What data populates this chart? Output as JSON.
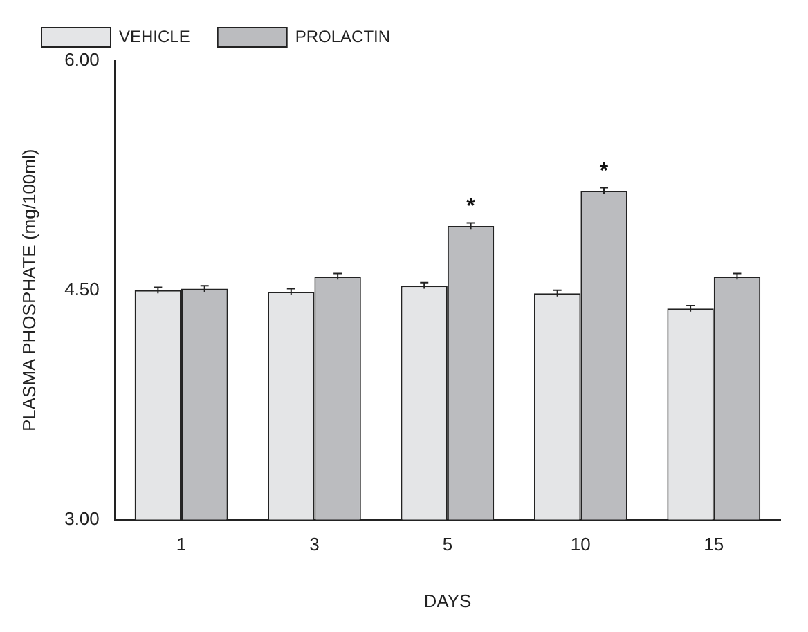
{
  "chart_data": {
    "type": "bar",
    "xlabel": "DAYS",
    "ylabel": "PLASMA PHOSPHATE (mg/100ml)",
    "categories": [
      "1",
      "3",
      "5",
      "10",
      "15"
    ],
    "series": [
      {
        "name": "VEHICLE",
        "color": "#e4e5e7",
        "values": [
          4.5,
          4.49,
          4.53,
          4.48,
          4.38
        ],
        "errors": [
          0.02,
          0.02,
          0.02,
          0.02,
          0.02
        ]
      },
      {
        "name": "PROLACTIN",
        "color": "#bbbcbf",
        "values": [
          4.51,
          4.59,
          4.92,
          5.15,
          4.59
        ],
        "errors": [
          0.02,
          0.02,
          0.02,
          0.02,
          0.02
        ]
      }
    ],
    "ylim": [
      3,
      6
    ],
    "yticks": [
      {
        "value": 3,
        "label": "3.00"
      },
      {
        "value": 4.5,
        "label": "4.50"
      },
      {
        "value": 6,
        "label": "6.00"
      }
    ],
    "annotations": [
      {
        "text": "*",
        "x": "5",
        "y": 4.92
      },
      {
        "text": "*",
        "x": "10",
        "y": 5.15
      }
    ],
    "grid": false,
    "legend": "top"
  }
}
